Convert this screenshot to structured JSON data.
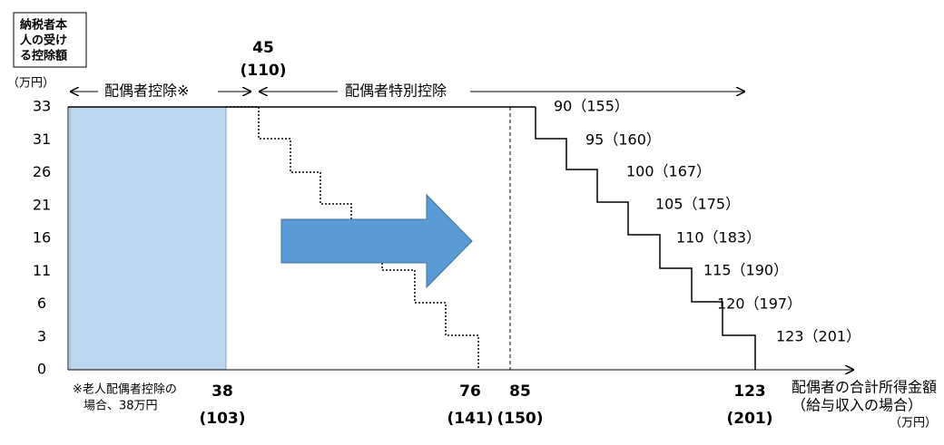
{
  "header": {
    "box": [
      "納税者本",
      "人の受け",
      "る控除額"
    ],
    "unit": "（万円）"
  },
  "y_axis": [
    33,
    31,
    26,
    21,
    16,
    11,
    6,
    3,
    0
  ],
  "ranges": {
    "spouse": "配偶者控除※",
    "special": "配偶者特別控除",
    "start_income": "45",
    "start_salary": "(110)"
  },
  "steps": [
    "90（155）",
    "95（160）",
    "100（167）",
    "105（175）",
    "110（183）",
    "115（190）",
    "120（197）",
    "123（201）"
  ],
  "x_labels": [
    {
      "income": "38",
      "salary": "(103)"
    },
    {
      "income": "76",
      "salary": "(141)"
    },
    {
      "income": "85",
      "salary": "(150)"
    },
    {
      "income": "123",
      "salary": "(201)"
    }
  ],
  "note": [
    "※老人配偶者控除の",
    "場合、38万円"
  ],
  "x_axis": {
    "title": "配偶者の合計所得金額",
    "subtitle": "（給与収入の場合）",
    "unit": "（万円）"
  }
}
